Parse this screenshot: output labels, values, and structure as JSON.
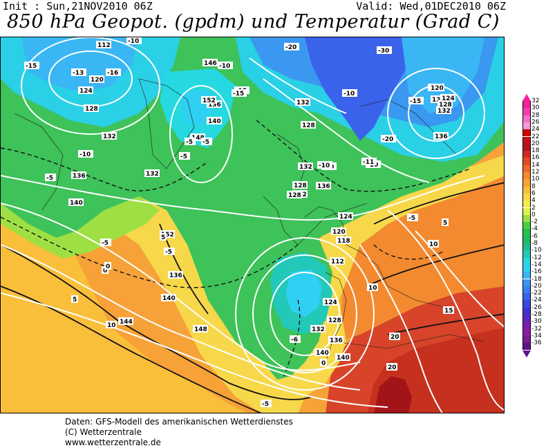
{
  "header": {
    "init": "Init : Sun,21NOV2010 06Z",
    "valid": "Valid: Wed,01DEC2010 06Z",
    "title": "850 hPa Geopot. (gpdm) und Temperatur (Grad C)"
  },
  "legend": {
    "values": [
      "32",
      "30",
      "28",
      "26",
      "24",
      "22",
      "20",
      "18",
      "16",
      "14",
      "12",
      "10",
      "8",
      "6",
      "4",
      "2",
      "0",
      "-2",
      "-4",
      "-6",
      "-8",
      "-10",
      "-12",
      "-14",
      "-16",
      "-18",
      "-20",
      "-22",
      "-24",
      "-26",
      "-28",
      "-30",
      "-32",
      "-34",
      "-36"
    ],
    "colors": [
      "#f5209c",
      "#f83cb0",
      "#f76ec8",
      "#f59ad8",
      "#d00000",
      "#c4101a",
      "#b4141e",
      "#d22a22",
      "#e34a28",
      "#ee6a2c",
      "#f38a30",
      "#f6a238",
      "#f9be3a",
      "#fad84a",
      "#f6ec4c",
      "#e0f050",
      "#9ee044",
      "#4ccf44",
      "#26c050",
      "#24b860",
      "#22bc8c",
      "#22c8b8",
      "#26d8e0",
      "#30d0f2",
      "#3ab6f4",
      "#3a98f0",
      "#3a7ef0",
      "#3a62ea",
      "#3a48e4",
      "#4032d0",
      "#5a28c0",
      "#7a1cae",
      "#8e1aa0",
      "#7a1a90",
      "#5e1488"
    ]
  },
  "geopotential_labels": [
    "112",
    "120",
    "124",
    "128",
    "132",
    "136",
    "140",
    "146",
    "152",
    "148",
    "132",
    "136",
    "132",
    "128",
    "140",
    "124",
    "120",
    "136",
    "132",
    "128",
    "132",
    "136",
    "128",
    "124",
    "120",
    "118",
    "112",
    "124",
    "128",
    "132",
    "136",
    "140",
    "144",
    "148",
    "152",
    "136",
    "140",
    "140",
    "120",
    "124",
    "128",
    "132"
  ],
  "temperature_labels": [
    "-10",
    "-15",
    "-13",
    "-16",
    "-20",
    "-30",
    "-15",
    "-5",
    "-10",
    "-15",
    "-10",
    "-5",
    "-10",
    "-5",
    "-5",
    "-10",
    "-11",
    "-10",
    "-15",
    "-20",
    "-5",
    "-5",
    "0",
    "5",
    "10",
    "5",
    "10",
    "15",
    "20",
    "20",
    "0",
    "-5",
    "5",
    "0",
    "-10",
    "-5",
    "10",
    "-6"
  ],
  "footer": {
    "line1": "Daten: GFS-Modell des amerikanischen Wetterdienstes",
    "line2": "(C) Wetterzentrale",
    "line3": "www.wetterzentrale.de"
  }
}
